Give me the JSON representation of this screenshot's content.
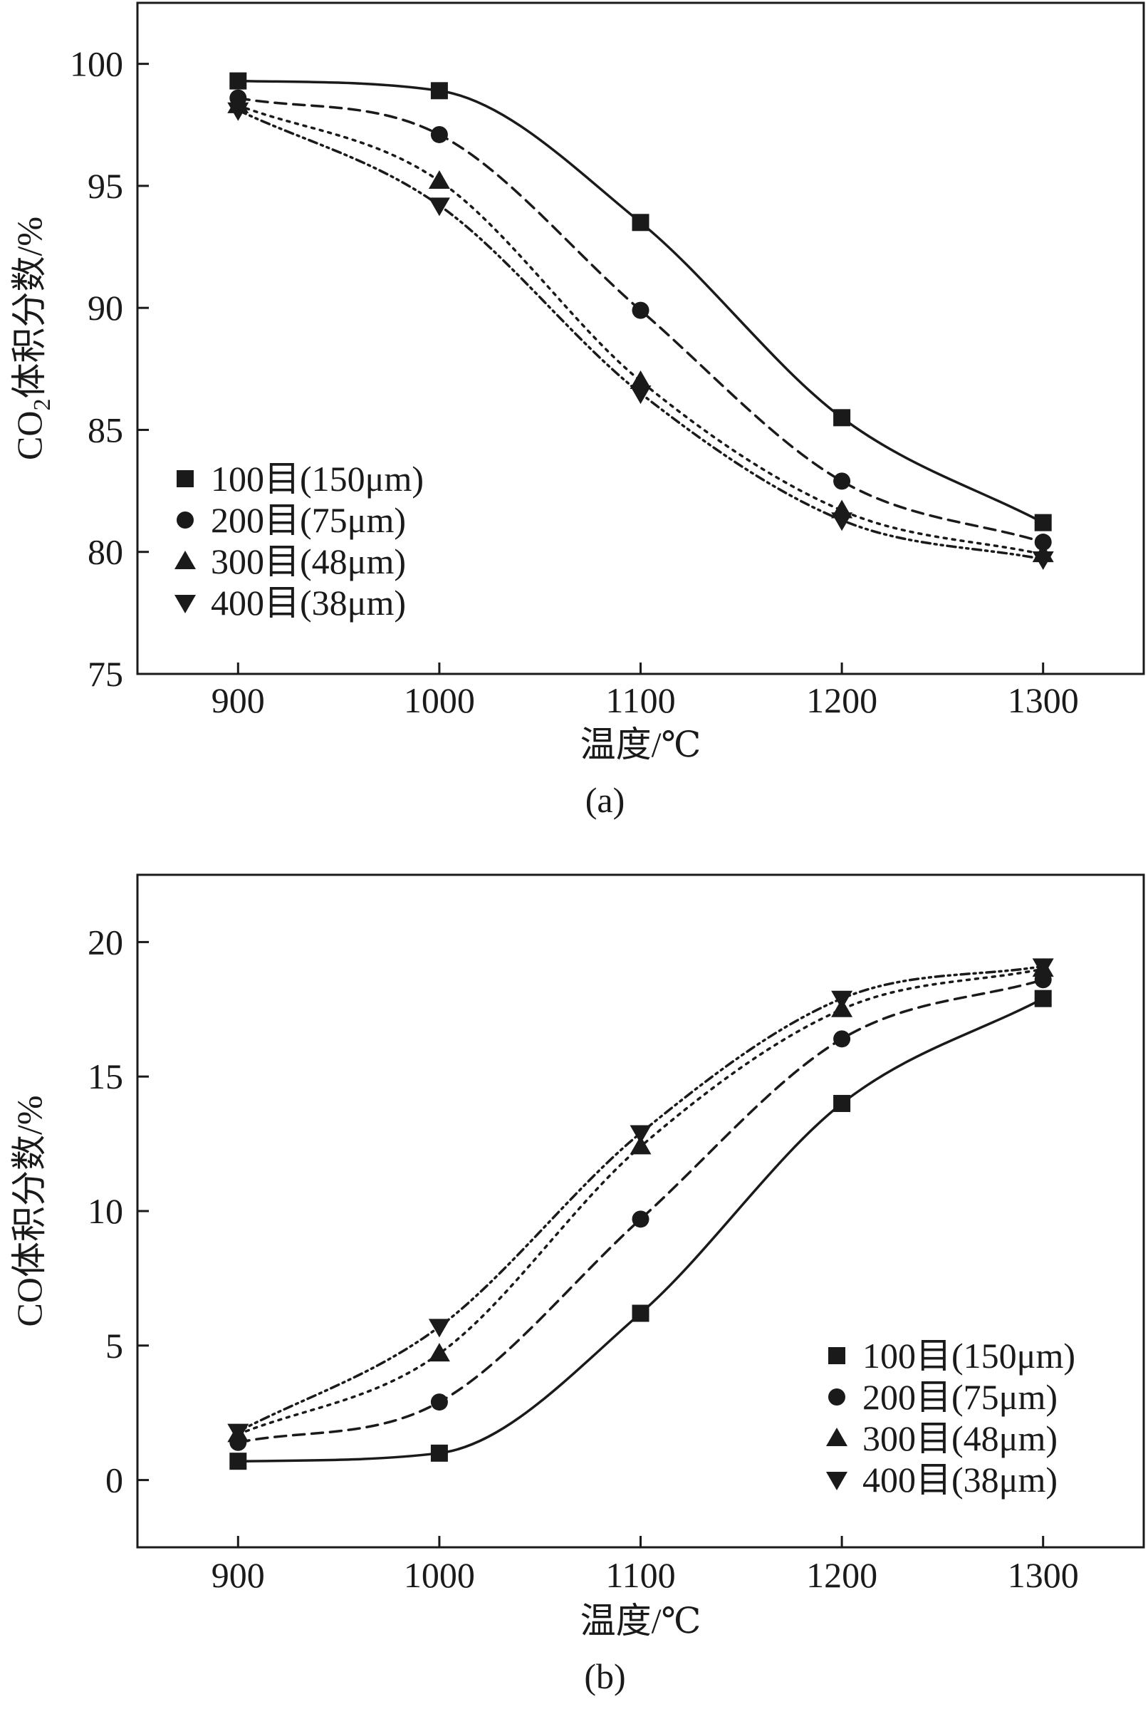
{
  "chart_data": [
    {
      "type": "line",
      "panel": "a",
      "caption": "(a)",
      "title": "",
      "xlabel": "温度/℃",
      "ylabel_main": "CO",
      "ylabel_sub": "2",
      "ylabel_rest": "体积分数/%",
      "x": [
        900,
        1000,
        1100,
        1200,
        1300
      ],
      "xlim": [
        850,
        1350
      ],
      "ylim": [
        75,
        102.5
      ],
      "xticks": [
        900,
        1000,
        1100,
        1200,
        1300
      ],
      "yticks": [
        75,
        80,
        85,
        90,
        95,
        100
      ],
      "legend_position": "bottom-left",
      "series": [
        {
          "name": "100目(150μm)",
          "marker": "square",
          "line": "solid",
          "values": [
            99.3,
            98.9,
            93.5,
            85.5,
            81.2
          ]
        },
        {
          "name": "200目(75μm)",
          "marker": "circle",
          "line": "dashed",
          "values": [
            98.6,
            97.1,
            89.9,
            82.9,
            80.4
          ]
        },
        {
          "name": "300目(48μm)",
          "marker": "triangle-up",
          "line": "dotted",
          "values": [
            98.3,
            95.2,
            87.0,
            81.7,
            79.9
          ]
        },
        {
          "name": "400目(38μm)",
          "marker": "triangle-down",
          "line": "dash-dot-dot",
          "values": [
            98.1,
            94.2,
            86.5,
            81.3,
            79.7
          ]
        }
      ]
    },
    {
      "type": "line",
      "panel": "b",
      "caption": "(b)",
      "title": "",
      "xlabel": "温度/℃",
      "ylabel_main": "CO体积分数/%",
      "ylabel_sub": "",
      "ylabel_rest": "",
      "x": [
        900,
        1000,
        1100,
        1200,
        1300
      ],
      "xlim": [
        850,
        1350
      ],
      "ylim": [
        -2.5,
        22.5
      ],
      "xticks": [
        900,
        1000,
        1100,
        1200,
        1300
      ],
      "yticks": [
        0,
        5,
        10,
        15,
        20
      ],
      "legend_position": "bottom-right",
      "series": [
        {
          "name": "100目(150μm)",
          "marker": "square",
          "line": "solid",
          "values": [
            0.7,
            1.0,
            6.2,
            14.0,
            17.9
          ]
        },
        {
          "name": "200目(75μm)",
          "marker": "circle",
          "line": "dashed",
          "values": [
            1.4,
            2.9,
            9.7,
            16.4,
            18.6
          ]
        },
        {
          "name": "300目(48μm)",
          "marker": "triangle-up",
          "line": "dotted",
          "values": [
            1.7,
            4.7,
            12.4,
            17.5,
            19.0
          ]
        },
        {
          "name": "400目(38μm)",
          "marker": "triangle-down",
          "line": "dash-dot-dot",
          "values": [
            1.8,
            5.7,
            12.9,
            17.9,
            19.1
          ]
        }
      ]
    }
  ]
}
